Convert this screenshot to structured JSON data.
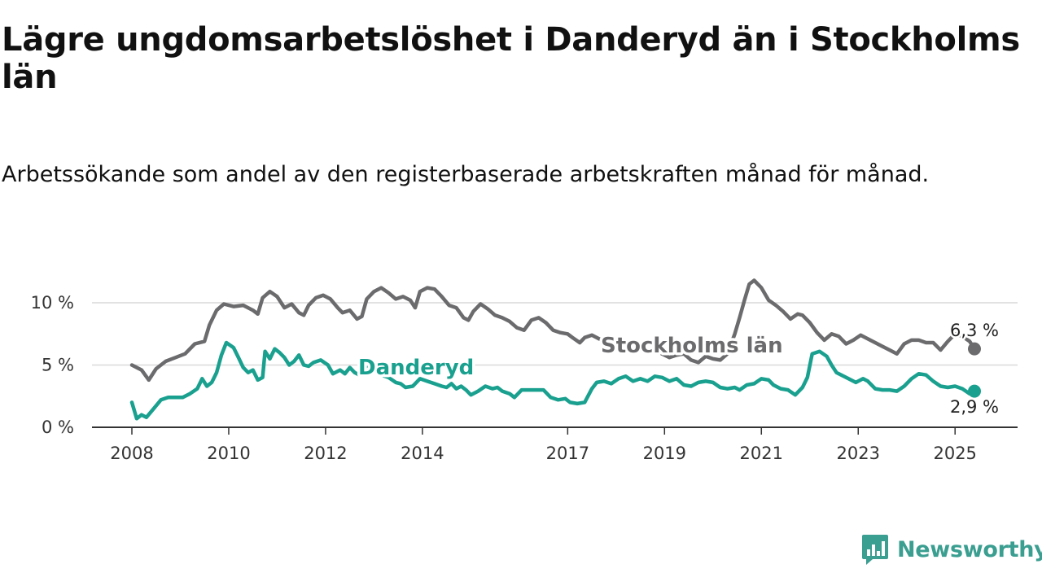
{
  "title": "Lägre ungdomsarbetslöshet i Danderyd än i Stockholms län",
  "subtitle": "Arbetssökande som andel av den registerbaserade arbetskraften månad för månad.",
  "brand": {
    "name": "Newsworthy",
    "icon": "newsworthy-logo-icon",
    "color": "#3a9e90"
  },
  "chart_data": {
    "type": "line",
    "title": "Lägre ungdomsarbetslöshet i Danderyd än i Stockholms län",
    "xlabel": "",
    "ylabel": "",
    "xlim": [
      2008.0,
      2025.6
    ],
    "ylim": [
      0,
      12
    ],
    "grid": true,
    "legend": "inline",
    "x_ticks": [
      {
        "value": 2008,
        "label": "2008"
      },
      {
        "value": 2010,
        "label": "2010"
      },
      {
        "value": 2012,
        "label": "2012"
      },
      {
        "value": 2014,
        "label": "2014"
      },
      {
        "value": 2017,
        "label": "2017"
      },
      {
        "value": 2019,
        "label": "2019"
      },
      {
        "value": 2021,
        "label": "2021"
      },
      {
        "value": 2023,
        "label": "2023"
      },
      {
        "value": 2025,
        "label": "2025"
      }
    ],
    "y_ticks": [
      {
        "value": 0,
        "label": "0 %"
      },
      {
        "value": 5,
        "label": "5 %"
      },
      {
        "value": 10,
        "label": "10 %"
      }
    ],
    "series": [
      {
        "name": "Stockholms län",
        "color": "#6b6b6e",
        "end_label": "6,3 %",
        "points": [
          [
            2008.0,
            5.0
          ],
          [
            2008.2,
            4.6
          ],
          [
            2008.35,
            3.8
          ],
          [
            2008.5,
            4.7
          ],
          [
            2008.7,
            5.3
          ],
          [
            2008.9,
            5.6
          ],
          [
            2009.1,
            5.9
          ],
          [
            2009.3,
            6.7
          ],
          [
            2009.5,
            6.9
          ],
          [
            2009.6,
            8.2
          ],
          [
            2009.75,
            9.4
          ],
          [
            2009.9,
            9.9
          ],
          [
            2010.1,
            9.7
          ],
          [
            2010.3,
            9.8
          ],
          [
            2010.5,
            9.4
          ],
          [
            2010.6,
            9.1
          ],
          [
            2010.7,
            10.4
          ],
          [
            2010.85,
            10.9
          ],
          [
            2011.0,
            10.5
          ],
          [
            2011.15,
            9.6
          ],
          [
            2011.3,
            9.9
          ],
          [
            2011.45,
            9.2
          ],
          [
            2011.55,
            9.0
          ],
          [
            2011.65,
            9.8
          ],
          [
            2011.8,
            10.4
          ],
          [
            2011.95,
            10.6
          ],
          [
            2012.1,
            10.3
          ],
          [
            2012.25,
            9.6
          ],
          [
            2012.35,
            9.2
          ],
          [
            2012.5,
            9.4
          ],
          [
            2012.65,
            8.7
          ],
          [
            2012.75,
            8.9
          ],
          [
            2012.85,
            10.3
          ],
          [
            2013.0,
            10.9
          ],
          [
            2013.15,
            11.2
          ],
          [
            2013.3,
            10.8
          ],
          [
            2013.45,
            10.3
          ],
          [
            2013.6,
            10.5
          ],
          [
            2013.75,
            10.2
          ],
          [
            2013.85,
            9.6
          ],
          [
            2013.95,
            10.9
          ],
          [
            2014.1,
            11.2
          ],
          [
            2014.25,
            11.1
          ],
          [
            2014.4,
            10.5
          ],
          [
            2014.55,
            9.8
          ],
          [
            2014.7,
            9.6
          ],
          [
            2014.85,
            8.8
          ],
          [
            2014.95,
            8.6
          ],
          [
            2015.05,
            9.3
          ],
          [
            2015.2,
            9.9
          ],
          [
            2015.35,
            9.5
          ],
          [
            2015.5,
            9.0
          ],
          [
            2015.65,
            8.8
          ],
          [
            2015.8,
            8.5
          ],
          [
            2015.95,
            8.0
          ],
          [
            2016.1,
            7.8
          ],
          [
            2016.25,
            8.6
          ],
          [
            2016.4,
            8.8
          ],
          [
            2016.55,
            8.4
          ],
          [
            2016.7,
            7.8
          ],
          [
            2016.85,
            7.6
          ],
          [
            2017.0,
            7.5
          ],
          [
            2017.1,
            7.2
          ],
          [
            2017.25,
            6.8
          ],
          [
            2017.35,
            7.2
          ],
          [
            2017.5,
            7.4
          ],
          [
            2017.65,
            7.1
          ],
          [
            2017.8,
            6.9
          ],
          [
            2017.95,
            6.6
          ],
          [
            2018.1,
            6.4
          ],
          [
            2018.2,
            6.1
          ],
          [
            2018.35,
            6.6
          ],
          [
            2018.5,
            6.4
          ],
          [
            2018.65,
            6.0
          ],
          [
            2018.8,
            6.2
          ],
          [
            2018.95,
            5.9
          ],
          [
            2019.1,
            5.6
          ],
          [
            2019.25,
            5.8
          ],
          [
            2019.4,
            5.9
          ],
          [
            2019.55,
            5.4
          ],
          [
            2019.7,
            5.2
          ],
          [
            2019.85,
            5.7
          ],
          [
            2020.0,
            5.5
          ],
          [
            2020.15,
            5.4
          ],
          [
            2020.3,
            5.9
          ],
          [
            2020.45,
            7.5
          ],
          [
            2020.55,
            8.8
          ],
          [
            2020.65,
            10.2
          ],
          [
            2020.75,
            11.5
          ],
          [
            2020.85,
            11.8
          ],
          [
            2021.0,
            11.2
          ],
          [
            2021.15,
            10.2
          ],
          [
            2021.3,
            9.8
          ],
          [
            2021.45,
            9.3
          ],
          [
            2021.6,
            8.7
          ],
          [
            2021.75,
            9.1
          ],
          [
            2021.85,
            9.0
          ],
          [
            2022.0,
            8.4
          ],
          [
            2022.15,
            7.6
          ],
          [
            2022.3,
            7.0
          ],
          [
            2022.45,
            7.5
          ],
          [
            2022.6,
            7.3
          ],
          [
            2022.75,
            6.7
          ],
          [
            2022.9,
            7.0
          ],
          [
            2023.05,
            7.4
          ],
          [
            2023.2,
            7.1
          ],
          [
            2023.35,
            6.8
          ],
          [
            2023.5,
            6.5
          ],
          [
            2023.65,
            6.2
          ],
          [
            2023.8,
            5.9
          ],
          [
            2023.95,
            6.7
          ],
          [
            2024.1,
            7.0
          ],
          [
            2024.25,
            7.0
          ],
          [
            2024.4,
            6.8
          ],
          [
            2024.55,
            6.8
          ],
          [
            2024.7,
            6.2
          ],
          [
            2024.85,
            6.9
          ],
          [
            2025.0,
            7.5
          ],
          [
            2025.15,
            7.3
          ],
          [
            2025.3,
            6.9
          ],
          [
            2025.4,
            6.3
          ]
        ]
      },
      {
        "name": "Danderyd",
        "color": "#1aa08f",
        "end_label": "2,9 %",
        "points": [
          [
            2008.0,
            2.0
          ],
          [
            2008.1,
            0.7
          ],
          [
            2008.2,
            1.0
          ],
          [
            2008.3,
            0.8
          ],
          [
            2008.45,
            1.5
          ],
          [
            2008.6,
            2.2
          ],
          [
            2008.75,
            2.4
          ],
          [
            2008.9,
            2.4
          ],
          [
            2009.05,
            2.4
          ],
          [
            2009.2,
            2.7
          ],
          [
            2009.35,
            3.1
          ],
          [
            2009.45,
            3.9
          ],
          [
            2009.55,
            3.3
          ],
          [
            2009.65,
            3.6
          ],
          [
            2009.75,
            4.4
          ],
          [
            2009.85,
            5.8
          ],
          [
            2009.95,
            6.8
          ],
          [
            2010.1,
            6.4
          ],
          [
            2010.2,
            5.6
          ],
          [
            2010.3,
            4.8
          ],
          [
            2010.4,
            4.4
          ],
          [
            2010.5,
            4.6
          ],
          [
            2010.6,
            3.8
          ],
          [
            2010.7,
            4.0
          ],
          [
            2010.75,
            6.1
          ],
          [
            2010.85,
            5.5
          ],
          [
            2010.95,
            6.3
          ],
          [
            2011.05,
            6.0
          ],
          [
            2011.15,
            5.6
          ],
          [
            2011.25,
            5.0
          ],
          [
            2011.35,
            5.3
          ],
          [
            2011.45,
            5.8
          ],
          [
            2011.55,
            5.0
          ],
          [
            2011.65,
            4.9
          ],
          [
            2011.75,
            5.2
          ],
          [
            2011.9,
            5.4
          ],
          [
            2012.05,
            5.0
          ],
          [
            2012.15,
            4.3
          ],
          [
            2012.3,
            4.6
          ],
          [
            2012.4,
            4.3
          ],
          [
            2012.5,
            4.8
          ],
          [
            2012.6,
            4.4
          ],
          [
            2012.7,
            4.2
          ],
          [
            2012.85,
            4.8
          ],
          [
            2013.0,
            4.6
          ],
          [
            2013.15,
            4.2
          ],
          [
            2013.3,
            4.0
          ],
          [
            2013.45,
            3.6
          ],
          [
            2013.55,
            3.5
          ],
          [
            2013.65,
            3.2
          ],
          [
            2013.8,
            3.3
          ],
          [
            2013.95,
            3.9
          ],
          [
            2014.1,
            3.7
          ],
          [
            2014.25,
            3.5
          ],
          [
            2014.4,
            3.3
          ],
          [
            2014.5,
            3.2
          ],
          [
            2014.6,
            3.5
          ],
          [
            2014.7,
            3.1
          ],
          [
            2014.8,
            3.3
          ],
          [
            2014.9,
            3.0
          ],
          [
            2015.0,
            2.6
          ],
          [
            2015.15,
            2.9
          ],
          [
            2015.3,
            3.3
          ],
          [
            2015.45,
            3.1
          ],
          [
            2015.55,
            3.2
          ],
          [
            2015.65,
            2.9
          ],
          [
            2015.8,
            2.7
          ],
          [
            2015.9,
            2.4
          ],
          [
            2016.05,
            3.0
          ],
          [
            2016.2,
            3.0
          ],
          [
            2016.35,
            3.0
          ],
          [
            2016.5,
            3.0
          ],
          [
            2016.65,
            2.4
          ],
          [
            2016.8,
            2.2
          ],
          [
            2016.95,
            2.3
          ],
          [
            2017.05,
            2.0
          ],
          [
            2017.2,
            1.9
          ],
          [
            2017.35,
            2.0
          ],
          [
            2017.5,
            3.1
          ],
          [
            2017.6,
            3.6
          ],
          [
            2017.75,
            3.7
          ],
          [
            2017.9,
            3.5
          ],
          [
            2018.05,
            3.9
          ],
          [
            2018.2,
            4.1
          ],
          [
            2018.35,
            3.7
          ],
          [
            2018.5,
            3.9
          ],
          [
            2018.65,
            3.7
          ],
          [
            2018.8,
            4.1
          ],
          [
            2018.95,
            4.0
          ],
          [
            2019.1,
            3.7
          ],
          [
            2019.25,
            3.9
          ],
          [
            2019.4,
            3.4
          ],
          [
            2019.55,
            3.3
          ],
          [
            2019.7,
            3.6
          ],
          [
            2019.85,
            3.7
          ],
          [
            2020.0,
            3.6
          ],
          [
            2020.15,
            3.2
          ],
          [
            2020.3,
            3.1
          ],
          [
            2020.45,
            3.2
          ],
          [
            2020.55,
            3.0
          ],
          [
            2020.7,
            3.4
          ],
          [
            2020.85,
            3.5
          ],
          [
            2021.0,
            3.9
          ],
          [
            2021.15,
            3.8
          ],
          [
            2021.25,
            3.4
          ],
          [
            2021.4,
            3.1
          ],
          [
            2021.55,
            3.0
          ],
          [
            2021.7,
            2.6
          ],
          [
            2021.85,
            3.2
          ],
          [
            2021.95,
            4.0
          ],
          [
            2022.05,
            5.9
          ],
          [
            2022.2,
            6.1
          ],
          [
            2022.35,
            5.7
          ],
          [
            2022.45,
            5.0
          ],
          [
            2022.55,
            4.4
          ],
          [
            2022.65,
            4.2
          ],
          [
            2022.8,
            3.9
          ],
          [
            2022.95,
            3.6
          ],
          [
            2023.1,
            3.9
          ],
          [
            2023.2,
            3.7
          ],
          [
            2023.35,
            3.1
          ],
          [
            2023.5,
            3.0
          ],
          [
            2023.65,
            3.0
          ],
          [
            2023.8,
            2.9
          ],
          [
            2023.95,
            3.3
          ],
          [
            2024.1,
            3.9
          ],
          [
            2024.25,
            4.3
          ],
          [
            2024.4,
            4.2
          ],
          [
            2024.55,
            3.7
          ],
          [
            2024.7,
            3.3
          ],
          [
            2024.85,
            3.2
          ],
          [
            2025.0,
            3.3
          ],
          [
            2025.15,
            3.1
          ],
          [
            2025.3,
            2.7
          ],
          [
            2025.4,
            2.9
          ]
        ]
      }
    ]
  }
}
